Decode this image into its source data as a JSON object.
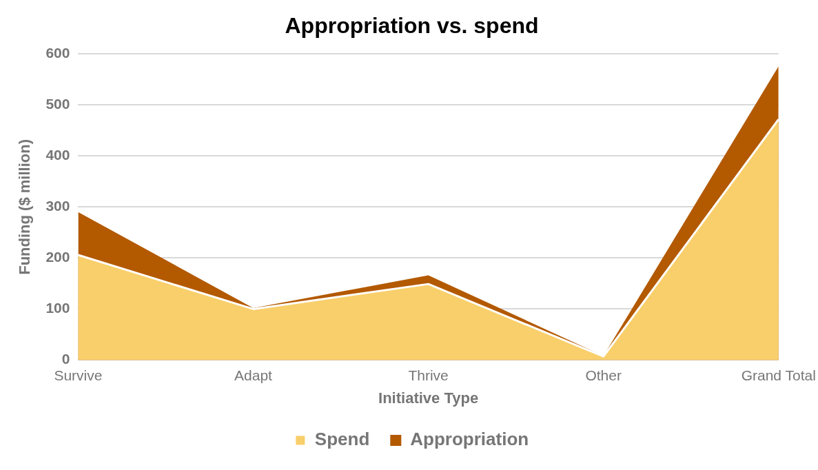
{
  "chart_data": {
    "type": "area",
    "title": "Appropriation vs. spend",
    "xlabel": "Initiative Type",
    "ylabel": "Funding ($ million)",
    "categories": [
      "Survive",
      "Adapt",
      "Thrive",
      "Other",
      "Grand Total"
    ],
    "series": [
      {
        "name": "Appropriation",
        "color": "#b35900",
        "values": [
          290,
          102,
          166,
          8,
          576
        ]
      },
      {
        "name": "Spend",
        "color": "#f9cf6b",
        "values": [
          206,
          100,
          149,
          7,
          472
        ]
      }
    ],
    "ylim": [
      0,
      600
    ],
    "yticks": [
      0,
      100,
      200,
      300,
      400,
      500,
      600
    ],
    "grid": "y",
    "legend": "bottom"
  }
}
